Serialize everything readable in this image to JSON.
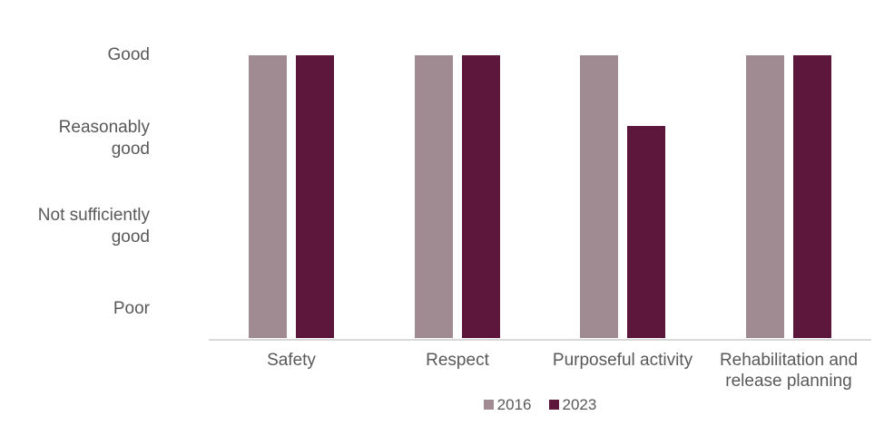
{
  "chart_data": {
    "type": "bar",
    "title": "",
    "categories": [
      "Safety",
      "Respect",
      "Purposeful activity",
      "Rehabilitation and release planning"
    ],
    "series": [
      {
        "name": "2016",
        "color": "#A18B93",
        "values": [
          4,
          4,
          4,
          4
        ]
      },
      {
        "name": "2023",
        "color": "#5E173C",
        "values": [
          4,
          4,
          3,
          4
        ]
      }
    ],
    "value_scale": {
      "4": "Good",
      "3": "Reasonably good",
      "2": "Not sufficiently good",
      "1": "Poor"
    },
    "y_axis": {
      "min": 0,
      "max": 4,
      "tick_labels": [
        "Good",
        "Reasonably good",
        "Not sufficiently good",
        "Poor"
      ],
      "tick_values": [
        4,
        3,
        2,
        1
      ]
    },
    "x_axis": {
      "labels": [
        "Safety",
        "Respect",
        "Purposeful activity",
        "Rehabilitation and release planning"
      ]
    },
    "legend": {
      "position": "bottom",
      "entries": [
        "2016",
        "2023"
      ]
    },
    "grid": false,
    "colors": {
      "axis_line": "#D9D9D9",
      "text": "#595959",
      "background": "#FFFFFF"
    },
    "readings": [
      {
        "category": "Safety",
        "2016": "Good",
        "2023": "Good"
      },
      {
        "category": "Respect",
        "2016": "Good",
        "2023": "Good"
      },
      {
        "category": "Purposeful activity",
        "2016": "Good",
        "2023": "Reasonably good"
      },
      {
        "category": "Rehabilitation and release planning",
        "2016": "Good",
        "2023": "Good"
      }
    ]
  }
}
